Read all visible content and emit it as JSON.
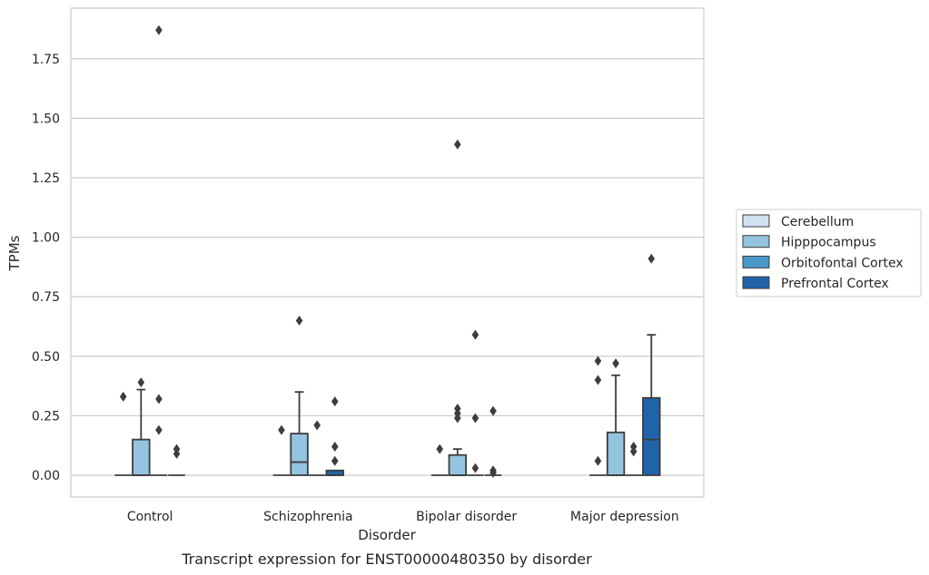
{
  "chart_data": {
    "type": "box",
    "caption": "Transcript expression for ENST00000480350 by disorder",
    "xlabel": "Disorder",
    "ylabel": "TPMs",
    "ylim": [
      -0.09,
      1.96
    ],
    "yticks": [
      0.0,
      0.25,
      0.5,
      0.75,
      1.0,
      1.25,
      1.5,
      1.75
    ],
    "ytick_labels": [
      "0.00",
      "0.25",
      "0.50",
      "0.75",
      "1.00",
      "1.25",
      "1.50",
      "1.75"
    ],
    "grid": "horizontal",
    "legend_position": "right",
    "categories": [
      "Control",
      "Schizophrenia",
      "Bipolar disorder",
      "Major depression"
    ],
    "series": [
      {
        "name": "Cerebellum",
        "color": "#d0e1f2",
        "boxes": [
          {
            "q1": 0,
            "median": 0,
            "q3": 0,
            "whislo": 0,
            "whishi": 0,
            "fliers": [
              0.33
            ]
          },
          {
            "q1": 0,
            "median": 0,
            "q3": 0,
            "whislo": 0,
            "whishi": 0,
            "fliers": [
              0.19
            ]
          },
          {
            "q1": 0,
            "median": 0,
            "q3": 0,
            "whislo": 0,
            "whishi": 0,
            "fliers": [
              0.11
            ]
          },
          {
            "q1": 0,
            "median": 0,
            "q3": 0,
            "whislo": 0,
            "whishi": 0,
            "fliers": [
              0.06,
              0.4,
              0.48
            ]
          }
        ]
      },
      {
        "name": "Hipppocampus",
        "color": "#94c4df",
        "boxes": [
          {
            "q1": 0,
            "median": 0,
            "q3": 0.15,
            "whislo": 0,
            "whishi": 0.36,
            "fliers": [
              0.39
            ]
          },
          {
            "q1": 0,
            "median": 0.055,
            "q3": 0.175,
            "whislo": 0,
            "whishi": 0.35,
            "fliers": [
              0.65
            ]
          },
          {
            "q1": 0,
            "median": 0,
            "q3": 0.085,
            "whislo": 0,
            "whishi": 0.11,
            "fliers": [
              0.24,
              0.26,
              0.28,
              1.39
            ]
          },
          {
            "q1": 0,
            "median": 0,
            "q3": 0.18,
            "whislo": 0,
            "whishi": 0.42,
            "fliers": [
              0.47
            ]
          }
        ]
      },
      {
        "name": "Orbitofontal Cortex",
        "color": "#4a98c9",
        "boxes": [
          {
            "q1": 0,
            "median": 0,
            "q3": 0,
            "whislo": 0,
            "whishi": 0,
            "fliers": [
              0.19,
              0.32,
              1.87
            ]
          },
          {
            "q1": 0,
            "median": 0,
            "q3": 0,
            "whislo": 0,
            "whishi": 0,
            "fliers": [
              0.21
            ]
          },
          {
            "q1": 0,
            "median": 0,
            "q3": 0,
            "whislo": 0,
            "whishi": 0,
            "fliers": [
              0.03,
              0.24,
              0.59
            ]
          },
          {
            "q1": 0,
            "median": 0,
            "q3": 0,
            "whislo": 0,
            "whishi": 0,
            "fliers": [
              0.1,
              0.12
            ]
          }
        ]
      },
      {
        "name": "Prefrontal Cortex",
        "color": "#2163a8",
        "boxes": [
          {
            "q1": 0,
            "median": 0,
            "q3": 0,
            "whislo": 0,
            "whishi": 0,
            "fliers": [
              0.09,
              0.11
            ]
          },
          {
            "q1": 0,
            "median": 0,
            "q3": 0.02,
            "whislo": 0,
            "whishi": 0.02,
            "fliers": [
              0.06,
              0.12,
              0.31
            ]
          },
          {
            "q1": 0,
            "median": 0,
            "q3": 0,
            "whislo": 0,
            "whishi": 0,
            "fliers": [
              0.01,
              0.02,
              0.27
            ]
          },
          {
            "q1": 0,
            "median": 0.15,
            "q3": 0.325,
            "whislo": 0,
            "whishi": 0.59,
            "fliers": [
              0.91
            ]
          }
        ]
      }
    ]
  }
}
